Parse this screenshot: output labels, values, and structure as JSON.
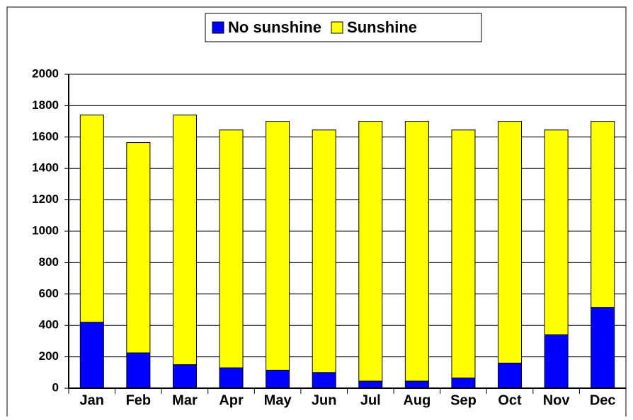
{
  "chart_data": {
    "type": "stacked-bar",
    "categories": [
      "Jan",
      "Feb",
      "Mar",
      "Apr",
      "May",
      "Jun",
      "Jul",
      "Aug",
      "Sep",
      "Oct",
      "Nov",
      "Dec"
    ],
    "series": [
      {
        "name": "No sunshine",
        "color": "#0000ff",
        "values": [
          420,
          225,
          150,
          130,
          115,
          100,
          45,
          45,
          65,
          160,
          340,
          515
        ]
      },
      {
        "name": "Sunshine",
        "color": "#ffff00",
        "values": [
          1320,
          1340,
          1590,
          1515,
          1585,
          1545,
          1655,
          1655,
          1580,
          1540,
          1305,
          1185
        ]
      }
    ],
    "ylim": [
      0,
      2000
    ],
    "yticks": [
      0,
      200,
      400,
      600,
      800,
      1000,
      1200,
      1400,
      1600,
      1800,
      2000
    ],
    "grid": true,
    "legend": "top"
  }
}
